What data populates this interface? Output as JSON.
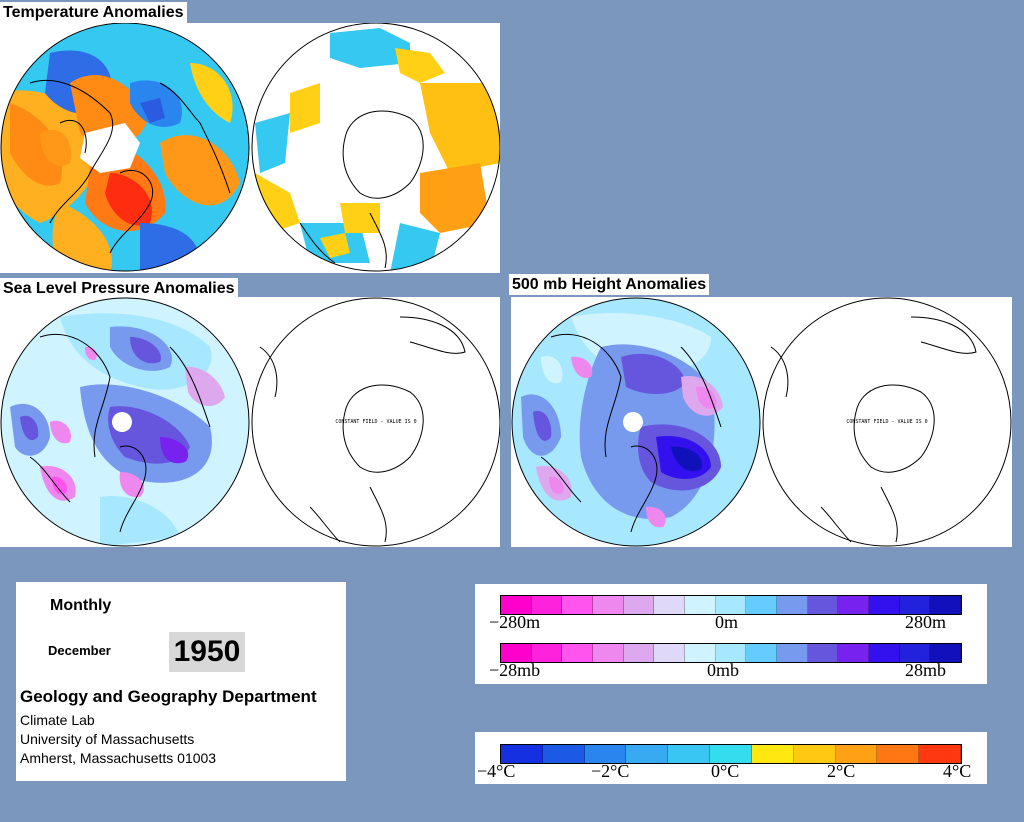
{
  "temperature": {
    "title": "Temperature Anomalies"
  },
  "slp": {
    "title": "Sea Level Pressure Anomalies",
    "constant_label": "CONSTANT FIELD - VALUE IS 0"
  },
  "height500": {
    "title": "500 mb Height Anomalies",
    "constant_label": "CONSTANT FIELD - VALUE IS 0"
  },
  "info": {
    "period": "Monthly",
    "month": "December",
    "year": "1950",
    "department": "Geology and Geography Department",
    "lab": "Climate Lab",
    "university": "University of Massachusetts",
    "address": "Amherst, Massachusetts 01003"
  },
  "legend_height": {
    "colors": [
      "#ff00cc",
      "#ff22dd",
      "#ff55ee",
      "#ee88ee",
      "#dda8ee",
      "#e0d8f8",
      "#d0f4ff",
      "#a8e8ff",
      "#66ccff",
      "#7799ee",
      "#6655dd",
      "#7722ee",
      "#3311ee",
      "#2222dd",
      "#1111bb"
    ],
    "labels": [
      "−280m",
      "0m",
      "280m"
    ]
  },
  "legend_slp": {
    "colors": [
      "#ff00cc",
      "#ff22dd",
      "#ff55ee",
      "#ee88ee",
      "#dda8ee",
      "#e0d8f8",
      "#d0f4ff",
      "#a8e8ff",
      "#66ccff",
      "#7799ee",
      "#6655dd",
      "#7722ee",
      "#3311ee",
      "#2222dd",
      "#1111bb"
    ],
    "labels": [
      "−28mb",
      "0mb",
      "28mb"
    ]
  },
  "legend_temp": {
    "colors": [
      "#1530e0",
      "#1c5ae6",
      "#2a86ee",
      "#38aaf2",
      "#3ac6f2",
      "#33dded",
      "#ffe812",
      "#ffc813",
      "#ffa114",
      "#ff7615",
      "#ff3812"
    ],
    "labels": [
      "−4°C",
      "−2°C",
      "0°C",
      "2°C",
      "4°C"
    ]
  }
}
